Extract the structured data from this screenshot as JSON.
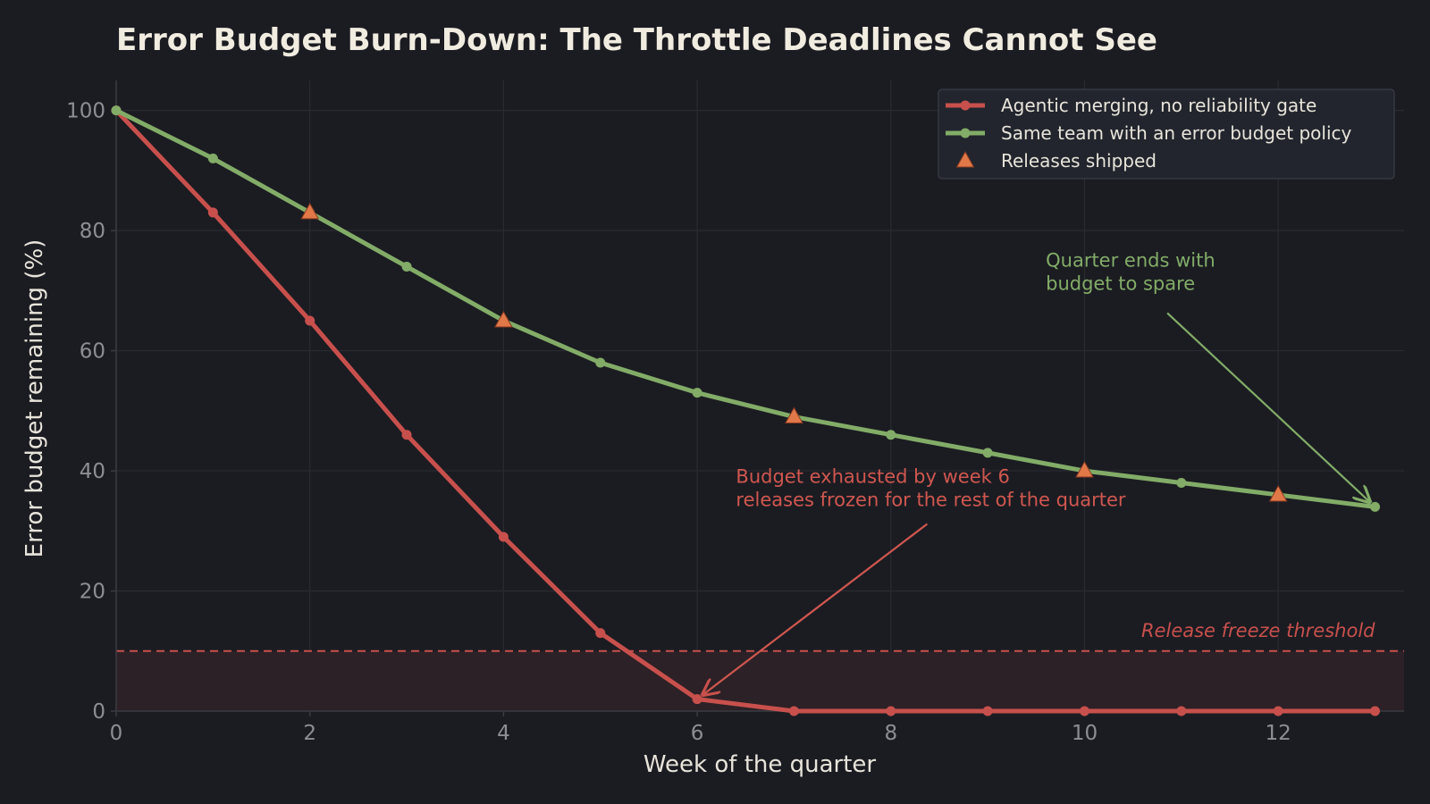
{
  "chart_data": {
    "type": "line",
    "title": "Error Budget Burn-Down: The Throttle Deadlines Cannot See",
    "xlabel": "Week of the quarter",
    "ylabel": "Error budget remaining (%)",
    "xlim": [
      0,
      13.3
    ],
    "ylim": [
      0,
      105
    ],
    "x_ticks": [
      0,
      2,
      4,
      6,
      8,
      10,
      12
    ],
    "y_ticks": [
      0,
      20,
      40,
      60,
      80,
      100
    ],
    "grid": true,
    "legend_position": "top-right",
    "x": [
      0,
      1,
      2,
      3,
      4,
      5,
      6,
      7,
      8,
      9,
      10,
      11,
      12,
      13
    ],
    "series": [
      {
        "name": "Agentic merging, no reliability gate",
        "color": "#c8504c",
        "values": [
          100,
          83,
          65,
          46,
          29,
          13,
          2,
          0,
          0,
          0,
          0,
          0,
          0,
          0
        ]
      },
      {
        "name": "Same team with an error budget policy",
        "color": "#82ac67",
        "values": [
          100,
          92,
          83,
          74,
          65,
          58,
          53,
          49,
          46,
          43,
          40,
          38,
          36,
          34
        ]
      }
    ],
    "releases": {
      "name": "Releases shipped",
      "color": "#e07848",
      "x": [
        2,
        4,
        7,
        10,
        12
      ],
      "y": [
        83,
        65,
        49,
        40,
        36
      ]
    },
    "threshold": {
      "label": "Release freeze threshold",
      "value": 10,
      "color": "#c8504c"
    },
    "annotations": [
      {
        "id": "exhausted",
        "lines": [
          "Budget exhausted by week 6",
          "releases frozen for the rest of the quarter"
        ],
        "color": "#d0574f",
        "point": [
          6,
          2
        ],
        "text_at": [
          6.4,
          38
        ]
      },
      {
        "id": "spare",
        "lines": [
          "Quarter ends with",
          "budget to spare"
        ],
        "color": "#82ac67",
        "point": [
          13,
          34
        ],
        "text_at": [
          9.6,
          74
        ]
      }
    ]
  }
}
